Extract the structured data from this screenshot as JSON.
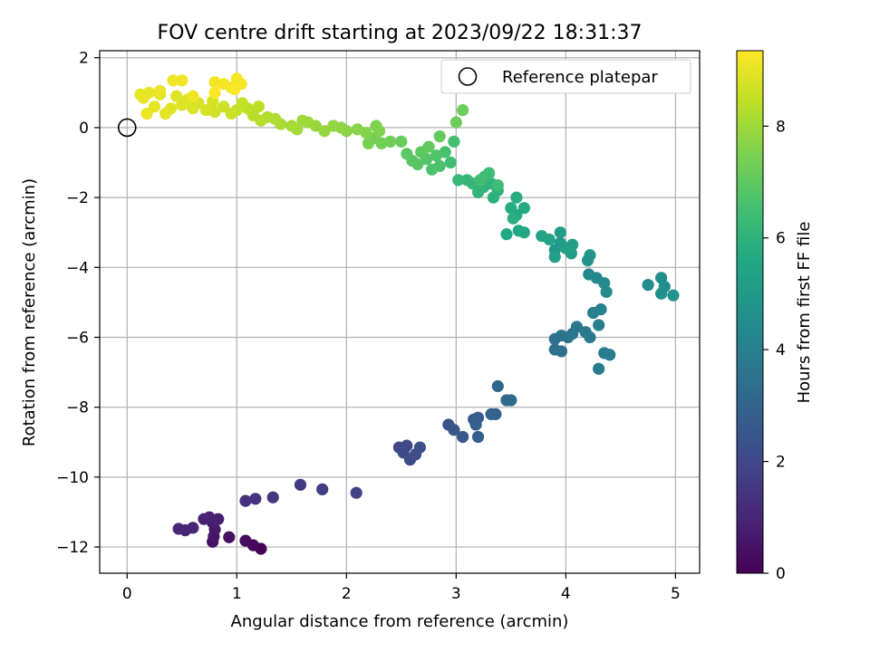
{
  "chart_data": {
    "type": "scatter",
    "title": "FOV centre drift starting at 2023/09/22 18:31:37",
    "xlabel": "Angular distance from reference (arcmin)",
    "ylabel": "Rotation from reference (arcmin)",
    "xlim": [
      -0.25,
      5.22
    ],
    "ylim": [
      -12.75,
      2.2
    ],
    "x_ticks": [
      0,
      1,
      2,
      3,
      4,
      5
    ],
    "y_ticks": [
      -12,
      -10,
      -8,
      -6,
      -4,
      -2,
      0,
      2
    ],
    "grid": true,
    "colorbar": {
      "label": "Hours from first FF file",
      "range": [
        0,
        9.35
      ],
      "ticks": [
        0,
        2,
        4,
        6,
        8
      ],
      "colormap": "viridis"
    },
    "legend": {
      "placement": "top-right",
      "entries": [
        {
          "label": "Reference platepar",
          "marker": "open-circle"
        }
      ]
    },
    "reference_point": {
      "x": 0,
      "y": 0
    },
    "points": [
      {
        "x": 1.22,
        "y": -12.05,
        "h": 0.05
      },
      {
        "x": 1.15,
        "y": -11.95,
        "h": 0.15
      },
      {
        "x": 1.08,
        "y": -11.82,
        "h": 0.3
      },
      {
        "x": 0.93,
        "y": -11.72,
        "h": 0.4
      },
      {
        "x": 0.78,
        "y": -11.85,
        "h": 0.5
      },
      {
        "x": 0.79,
        "y": -11.7,
        "h": 0.55
      },
      {
        "x": 0.8,
        "y": -11.5,
        "h": 0.6
      },
      {
        "x": 0.78,
        "y": -11.3,
        "h": 0.7
      },
      {
        "x": 0.83,
        "y": -11.2,
        "h": 0.8
      },
      {
        "x": 0.75,
        "y": -11.15,
        "h": 0.85
      },
      {
        "x": 0.7,
        "y": -11.2,
        "h": 0.9
      },
      {
        "x": 0.6,
        "y": -11.45,
        "h": 0.95
      },
      {
        "x": 0.53,
        "y": -11.52,
        "h": 1.0
      },
      {
        "x": 0.47,
        "y": -11.48,
        "h": 1.05
      },
      {
        "x": 1.08,
        "y": -10.68,
        "h": 1.3
      },
      {
        "x": 1.17,
        "y": -10.62,
        "h": 1.4
      },
      {
        "x": 1.33,
        "y": -10.58,
        "h": 1.5
      },
      {
        "x": 1.58,
        "y": -10.22,
        "h": 1.6
      },
      {
        "x": 1.78,
        "y": -10.35,
        "h": 1.7
      },
      {
        "x": 2.09,
        "y": -10.45,
        "h": 1.8
      },
      {
        "x": 2.48,
        "y": -9.15,
        "h": 2.0
      },
      {
        "x": 2.55,
        "y": -9.1,
        "h": 2.05
      },
      {
        "x": 2.52,
        "y": -9.3,
        "h": 2.1
      },
      {
        "x": 2.58,
        "y": -9.5,
        "h": 2.15
      },
      {
        "x": 2.63,
        "y": -9.35,
        "h": 2.2
      },
      {
        "x": 2.67,
        "y": -9.15,
        "h": 2.25
      },
      {
        "x": 2.93,
        "y": -8.5,
        "h": 2.4
      },
      {
        "x": 2.98,
        "y": -8.65,
        "h": 2.5
      },
      {
        "x": 3.06,
        "y": -8.85,
        "h": 2.6
      },
      {
        "x": 3.16,
        "y": -8.35,
        "h": 2.7
      },
      {
        "x": 3.2,
        "y": -8.3,
        "h": 2.75
      },
      {
        "x": 3.18,
        "y": -8.5,
        "h": 2.8
      },
      {
        "x": 3.2,
        "y": -8.85,
        "h": 2.85
      },
      {
        "x": 3.32,
        "y": -8.2,
        "h": 2.95
      },
      {
        "x": 3.36,
        "y": -8.2,
        "h": 3.0
      },
      {
        "x": 3.38,
        "y": -7.4,
        "h": 3.1
      },
      {
        "x": 3.46,
        "y": -7.8,
        "h": 3.15
      },
      {
        "x": 3.5,
        "y": -7.8,
        "h": 3.2
      },
      {
        "x": 3.9,
        "y": -6.35,
        "h": 3.4
      },
      {
        "x": 3.96,
        "y": -6.4,
        "h": 3.45
      },
      {
        "x": 3.9,
        "y": -6.05,
        "h": 3.5
      },
      {
        "x": 3.96,
        "y": -5.95,
        "h": 3.55
      },
      {
        "x": 4.02,
        "y": -6.0,
        "h": 3.6
      },
      {
        "x": 4.06,
        "y": -5.9,
        "h": 3.65
      },
      {
        "x": 4.1,
        "y": -5.7,
        "h": 3.7
      },
      {
        "x": 4.18,
        "y": -5.85,
        "h": 3.75
      },
      {
        "x": 4.22,
        "y": -6.0,
        "h": 3.8
      },
      {
        "x": 4.3,
        "y": -6.9,
        "h": 3.85
      },
      {
        "x": 4.35,
        "y": -6.45,
        "h": 3.9
      },
      {
        "x": 4.4,
        "y": -6.5,
        "h": 3.95
      },
      {
        "x": 4.3,
        "y": -5.65,
        "h": 4.0
      },
      {
        "x": 4.25,
        "y": -5.3,
        "h": 4.05
      },
      {
        "x": 4.32,
        "y": -5.2,
        "h": 4.1
      },
      {
        "x": 4.21,
        "y": -4.2,
        "h": 4.3
      },
      {
        "x": 4.28,
        "y": -4.3,
        "h": 4.35
      },
      {
        "x": 4.35,
        "y": -4.45,
        "h": 4.4
      },
      {
        "x": 4.37,
        "y": -4.7,
        "h": 4.45
      },
      {
        "x": 4.75,
        "y": -4.5,
        "h": 4.5
      },
      {
        "x": 4.87,
        "y": -4.3,
        "h": 4.55
      },
      {
        "x": 4.9,
        "y": -4.55,
        "h": 4.6
      },
      {
        "x": 4.87,
        "y": -4.75,
        "h": 4.65
      },
      {
        "x": 4.98,
        "y": -4.8,
        "h": 4.7
      },
      {
        "x": 4.22,
        "y": -3.65,
        "h": 4.8
      },
      {
        "x": 4.2,
        "y": -3.8,
        "h": 4.85
      },
      {
        "x": 3.9,
        "y": -3.5,
        "h": 5.0
      },
      {
        "x": 3.95,
        "y": -3.3,
        "h": 5.05
      },
      {
        "x": 3.95,
        "y": -3.0,
        "h": 5.1
      },
      {
        "x": 4.0,
        "y": -3.45,
        "h": 5.15
      },
      {
        "x": 4.05,
        "y": -3.6,
        "h": 5.2
      },
      {
        "x": 4.06,
        "y": -3.35,
        "h": 5.25
      },
      {
        "x": 3.9,
        "y": -3.7,
        "h": 5.3
      },
      {
        "x": 3.85,
        "y": -3.2,
        "h": 5.35
      },
      {
        "x": 3.78,
        "y": -3.1,
        "h": 5.4
      },
      {
        "x": 3.62,
        "y": -3.0,
        "h": 5.5
      },
      {
        "x": 3.57,
        "y": -2.95,
        "h": 5.55
      },
      {
        "x": 3.46,
        "y": -3.05,
        "h": 5.6
      },
      {
        "x": 3.55,
        "y": -2.5,
        "h": 5.65
      },
      {
        "x": 3.62,
        "y": -2.3,
        "h": 5.7
      },
      {
        "x": 3.5,
        "y": -2.3,
        "h": 5.75
      },
      {
        "x": 3.55,
        "y": -2.0,
        "h": 5.8
      },
      {
        "x": 3.52,
        "y": -2.6,
        "h": 5.85
      },
      {
        "x": 3.34,
        "y": -2.0,
        "h": 5.9
      },
      {
        "x": 3.38,
        "y": -1.8,
        "h": 5.95
      },
      {
        "x": 3.32,
        "y": -1.6,
        "h": 6.0
      },
      {
        "x": 3.25,
        "y": -1.7,
        "h": 6.05
      },
      {
        "x": 3.2,
        "y": -1.85,
        "h": 6.1
      },
      {
        "x": 3.15,
        "y": -1.6,
        "h": 6.15
      },
      {
        "x": 3.1,
        "y": -1.5,
        "h": 6.2
      },
      {
        "x": 3.02,
        "y": -1.5,
        "h": 6.25
      },
      {
        "x": 3.26,
        "y": -1.4,
        "h": 6.3
      },
      {
        "x": 3.3,
        "y": -1.3,
        "h": 6.35
      },
      {
        "x": 3.38,
        "y": -1.65,
        "h": 6.4
      },
      {
        "x": 3.22,
        "y": -1.5,
        "h": 6.45
      },
      {
        "x": 2.95,
        "y": -1.0,
        "h": 6.5
      },
      {
        "x": 2.98,
        "y": -0.4,
        "h": 6.55
      },
      {
        "x": 2.9,
        "y": -0.7,
        "h": 6.6
      },
      {
        "x": 2.85,
        "y": -1.1,
        "h": 6.65
      },
      {
        "x": 2.78,
        "y": -1.2,
        "h": 6.7
      },
      {
        "x": 2.82,
        "y": -0.8,
        "h": 6.75
      },
      {
        "x": 2.73,
        "y": -0.9,
        "h": 6.8
      },
      {
        "x": 2.65,
        "y": -1.05,
        "h": 6.85
      },
      {
        "x": 2.6,
        "y": -0.95,
        "h": 6.9
      },
      {
        "x": 2.55,
        "y": -0.75,
        "h": 6.95
      },
      {
        "x": 2.68,
        "y": -0.7,
        "h": 7.0
      },
      {
        "x": 2.75,
        "y": -0.55,
        "h": 7.05
      },
      {
        "x": 2.85,
        "y": -0.25,
        "h": 7.1
      },
      {
        "x": 2.5,
        "y": -0.4,
        "h": 7.15
      },
      {
        "x": 3.0,
        "y": 0.15,
        "h": 7.2
      },
      {
        "x": 3.06,
        "y": 0.5,
        "h": 7.25
      },
      {
        "x": 2.4,
        "y": -0.4,
        "h": 7.3
      },
      {
        "x": 2.32,
        "y": -0.45,
        "h": 7.35
      },
      {
        "x": 2.25,
        "y": -0.3,
        "h": 7.4
      },
      {
        "x": 2.2,
        "y": -0.45,
        "h": 7.45
      },
      {
        "x": 2.27,
        "y": 0.05,
        "h": 7.5
      },
      {
        "x": 2.3,
        "y": -0.1,
        "h": 7.55
      },
      {
        "x": 2.18,
        "y": -0.15,
        "h": 7.6
      },
      {
        "x": 2.1,
        "y": -0.05,
        "h": 7.65
      },
      {
        "x": 2.0,
        "y": -0.1,
        "h": 7.7
      },
      {
        "x": 1.95,
        "y": 0.0,
        "h": 7.75
      },
      {
        "x": 1.88,
        "y": 0.05,
        "h": 7.8
      },
      {
        "x": 1.8,
        "y": -0.1,
        "h": 7.85
      },
      {
        "x": 1.72,
        "y": 0.05,
        "h": 7.9
      },
      {
        "x": 1.65,
        "y": 0.15,
        "h": 7.95
      },
      {
        "x": 1.6,
        "y": 0.2,
        "h": 8.0
      },
      {
        "x": 1.55,
        "y": -0.05,
        "h": 8.05
      },
      {
        "x": 1.5,
        "y": 0.05,
        "h": 8.1
      },
      {
        "x": 1.4,
        "y": 0.1,
        "h": 8.15
      },
      {
        "x": 1.35,
        "y": 0.25,
        "h": 8.2
      },
      {
        "x": 1.28,
        "y": 0.3,
        "h": 8.25
      },
      {
        "x": 1.22,
        "y": 0.2,
        "h": 8.3
      },
      {
        "x": 1.15,
        "y": 0.35,
        "h": 8.35
      },
      {
        "x": 1.2,
        "y": 0.6,
        "h": 8.4
      },
      {
        "x": 1.1,
        "y": 0.55,
        "h": 8.45
      },
      {
        "x": 1.05,
        "y": 0.7,
        "h": 8.5
      },
      {
        "x": 1.0,
        "y": 0.5,
        "h": 8.55
      },
      {
        "x": 0.95,
        "y": 0.4,
        "h": 8.6
      },
      {
        "x": 0.88,
        "y": 0.6,
        "h": 8.65
      },
      {
        "x": 0.8,
        "y": 0.45,
        "h": 8.7
      },
      {
        "x": 0.78,
        "y": 0.75,
        "h": 8.75
      },
      {
        "x": 0.72,
        "y": 0.5,
        "h": 8.8
      },
      {
        "x": 0.65,
        "y": 0.7,
        "h": 8.82
      },
      {
        "x": 0.6,
        "y": 0.55,
        "h": 8.85
      },
      {
        "x": 0.55,
        "y": 0.8,
        "h": 8.87
      },
      {
        "x": 0.5,
        "y": 0.65,
        "h": 8.9
      },
      {
        "x": 0.45,
        "y": 0.9,
        "h": 8.92
      },
      {
        "x": 0.4,
        "y": 0.55,
        "h": 8.94
      },
      {
        "x": 0.35,
        "y": 0.4,
        "h": 8.96
      },
      {
        "x": 0.3,
        "y": 0.95,
        "h": 8.98
      },
      {
        "x": 0.25,
        "y": 0.6,
        "h": 9.0
      },
      {
        "x": 0.2,
        "y": 1.0,
        "h": 9.02
      },
      {
        "x": 0.15,
        "y": 0.85,
        "h": 9.04
      },
      {
        "x": 0.12,
        "y": 0.95,
        "h": 9.06
      },
      {
        "x": 0.18,
        "y": 0.4,
        "h": 9.08
      },
      {
        "x": 0.3,
        "y": 1.05,
        "h": 9.1
      },
      {
        "x": 0.42,
        "y": 1.35,
        "h": 9.12
      },
      {
        "x": 0.5,
        "y": 1.35,
        "h": 9.14
      },
      {
        "x": 0.6,
        "y": 0.9,
        "h": 9.16
      },
      {
        "x": 0.8,
        "y": 1.3,
        "h": 9.18
      },
      {
        "x": 0.88,
        "y": 1.25,
        "h": 9.2
      },
      {
        "x": 0.95,
        "y": 1.15,
        "h": 9.22
      },
      {
        "x": 1.0,
        "y": 1.4,
        "h": 9.25
      },
      {
        "x": 1.04,
        "y": 1.25,
        "h": 9.28
      },
      {
        "x": 0.98,
        "y": 1.1,
        "h": 9.3
      },
      {
        "x": 0.8,
        "y": 1.0,
        "h": 9.32
      }
    ]
  }
}
